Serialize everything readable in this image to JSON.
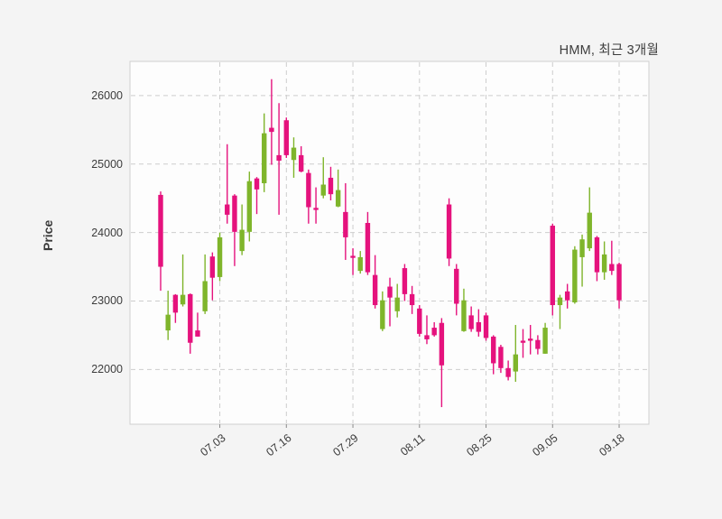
{
  "title": "HMM, 최근 3개월",
  "axes": {
    "y_label": "Price",
    "y_ticks": [
      "26000",
      "25000",
      "24000",
      "23000",
      "22000"
    ],
    "x_ticks": [
      "07.03",
      "07.16",
      "07.29",
      "08.11",
      "08.25",
      "09.05",
      "09.18"
    ]
  },
  "colors": {
    "up": "#7fb52b",
    "down": "#e5127d",
    "grid": "#cdcdcd",
    "plot_border": "#cfcfcf",
    "plot_bg": "#fdfdfd",
    "figure_bg": "#f4f4f4",
    "text": "#3c3c3c",
    "tick_mark": "#8a8a8a"
  },
  "chart_data": {
    "type": "candlestick",
    "title": "HMM, 최근 3개월",
    "xlabel": "",
    "ylabel": "Price",
    "ylim": [
      21200,
      26500
    ],
    "grid": true,
    "y_tick_values": [
      26000,
      25000,
      24000,
      23000,
      22000
    ],
    "x_tick_labels": [
      "07.03",
      "07.16",
      "07.29",
      "08.11",
      "08.25",
      "09.05",
      "09.18"
    ],
    "x_tick_indices": [
      8,
      17,
      26,
      35,
      44,
      53,
      62
    ],
    "up_color": "#7fb52b",
    "down_color": "#e5127d",
    "ohlc_format": [
      "open",
      "high",
      "low",
      "close"
    ],
    "candles": [
      [
        24550,
        24600,
        23150,
        23500
      ],
      [
        22570,
        23150,
        22430,
        22800
      ],
      [
        23090,
        23100,
        22680,
        22830
      ],
      [
        22950,
        23680,
        22920,
        23090
      ],
      [
        23100,
        23110,
        22230,
        22390
      ],
      [
        22570,
        22830,
        22480,
        22480
      ],
      [
        22850,
        23680,
        22810,
        23290
      ],
      [
        23650,
        23710,
        23010,
        23340
      ],
      [
        23350,
        24000,
        23290,
        23930
      ],
      [
        24410,
        25290,
        24130,
        24260
      ],
      [
        24540,
        24560,
        23510,
        24010
      ],
      [
        23730,
        24410,
        23670,
        24040
      ],
      [
        24010,
        24890,
        23870,
        24750
      ],
      [
        24790,
        24810,
        24270,
        24630
      ],
      [
        24720,
        25740,
        24590,
        25450
      ],
      [
        25530,
        26240,
        24990,
        25470
      ],
      [
        25130,
        25890,
        24260,
        25050
      ],
      [
        25640,
        25680,
        25090,
        25130
      ],
      [
        25060,
        25390,
        24800,
        25240
      ],
      [
        25130,
        25260,
        24880,
        24890
      ],
      [
        24870,
        24920,
        24130,
        24370
      ],
      [
        24360,
        24660,
        24130,
        24330
      ],
      [
        24540,
        25100,
        24500,
        24700
      ],
      [
        24800,
        24960,
        24470,
        24560
      ],
      [
        24380,
        24920,
        24370,
        24620
      ],
      [
        24300,
        24720,
        23600,
        23930
      ],
      [
        23660,
        23770,
        23380,
        23630
      ],
      [
        23440,
        23730,
        23400,
        23640
      ],
      [
        24140,
        24300,
        23380,
        23420
      ],
      [
        23380,
        23670,
        22890,
        22940
      ],
      [
        22590,
        23140,
        22560,
        23010
      ],
      [
        23210,
        23340,
        22630,
        23050
      ],
      [
        22850,
        23250,
        22760,
        23050
      ],
      [
        23480,
        23540,
        23000,
        23100
      ],
      [
        23100,
        23220,
        22810,
        22940
      ],
      [
        22890,
        22940,
        22480,
        22520
      ],
      [
        22500,
        22790,
        22370,
        22440
      ],
      [
        22610,
        22690,
        22480,
        22500
      ],
      [
        22680,
        22750,
        21450,
        22060
      ],
      [
        24410,
        24500,
        23510,
        23620
      ],
      [
        23470,
        23540,
        22790,
        22960
      ],
      [
        22560,
        23180,
        22550,
        23010
      ],
      [
        22790,
        22920,
        22550,
        22590
      ],
      [
        22690,
        22880,
        22480,
        22550
      ],
      [
        22790,
        22830,
        22420,
        22460
      ],
      [
        22480,
        22500,
        21930,
        22090
      ],
      [
        22330,
        22360,
        21950,
        22020
      ],
      [
        22020,
        22130,
        21840,
        21890
      ],
      [
        21970,
        22650,
        21820,
        22220
      ],
      [
        22420,
        22590,
        22170,
        22390
      ],
      [
        22450,
        22650,
        22220,
        22420
      ],
      [
        22430,
        22500,
        22220,
        22300
      ],
      [
        22230,
        22680,
        22230,
        22610
      ],
      [
        24100,
        24130,
        22790,
        22940
      ],
      [
        22940,
        23090,
        22590,
        23050
      ],
      [
        23140,
        23250,
        22890,
        23010
      ],
      [
        22980,
        23800,
        22960,
        23750
      ],
      [
        23640,
        23970,
        23210,
        23900
      ],
      [
        23770,
        24660,
        23730,
        24290
      ],
      [
        23930,
        23950,
        23290,
        23420
      ],
      [
        23420,
        23870,
        23310,
        23680
      ],
      [
        23540,
        23880,
        23380,
        23440
      ],
      [
        23540,
        23560,
        22890,
        23010
      ]
    ]
  }
}
